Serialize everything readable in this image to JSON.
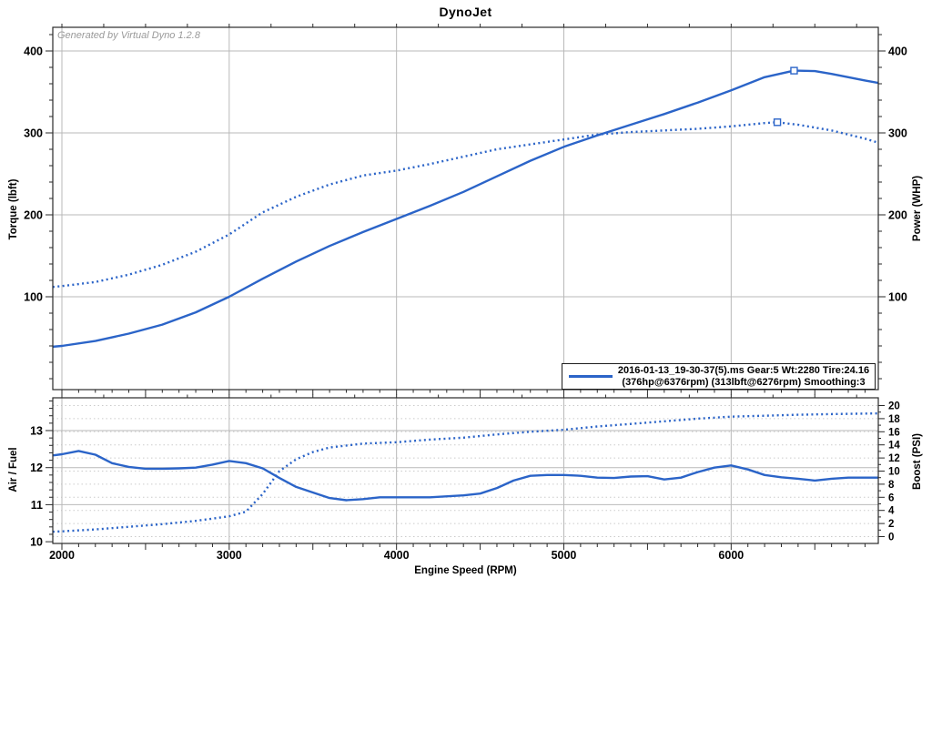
{
  "title": "DynoJet",
  "watermark": "Generated by Virtual Dyno 1.2.8",
  "colors": {
    "accent": "#2b64c8",
    "grid": "#b9b9b9",
    "grid_dotted": "#cbcbcb",
    "frame": "#2a2a2a",
    "tick": "#2a2a2a",
    "watermark_text": "#9a9a9a",
    "text": "#000000"
  },
  "chart_data": [
    {
      "type": "line",
      "title": "DynoJet",
      "ylabel_left": "Torque (lbft)",
      "ylabel_right": "Power (WHP)",
      "x_range": [
        1945,
        6880
      ],
      "y_range": [
        0,
        430
      ],
      "y_ticks": [
        100,
        200,
        300,
        400
      ],
      "y_minor_step": 20,
      "x_ticks": [
        2000,
        3000,
        4000,
        5000,
        6000
      ],
      "x_minor_step": 100,
      "grid": true,
      "legend_position": "bottom-right",
      "legend": {
        "line1": "2016-01-13_19-30-37(5).ms Gear:5 Wt:2280 Tire:24.16",
        "line2": "(376hp@6376rpm) (313lbft@6276rpm) Smoothing:3"
      },
      "series": [
        {
          "name": "Power (WHP)",
          "style": "solid",
          "peak": {
            "rpm": 6376,
            "value": 376
          },
          "points": [
            [
              1945,
              39
            ],
            [
              2000,
              40
            ],
            [
              2200,
              46
            ],
            [
              2400,
              55
            ],
            [
              2600,
              66
            ],
            [
              2800,
              81
            ],
            [
              3000,
              100
            ],
            [
              3200,
              122
            ],
            [
              3400,
              143
            ],
            [
              3600,
              162
            ],
            [
              3800,
              179
            ],
            [
              4000,
              195
            ],
            [
              4200,
              211
            ],
            [
              4400,
              228
            ],
            [
              4600,
              247
            ],
            [
              4800,
              266
            ],
            [
              5000,
              283
            ],
            [
              5200,
              297
            ],
            [
              5400,
              310
            ],
            [
              5600,
              323
            ],
            [
              5800,
              337
            ],
            [
              6000,
              352
            ],
            [
              6200,
              368
            ],
            [
              6376,
              376
            ],
            [
              6500,
              375.5
            ],
            [
              6600,
              372
            ],
            [
              6800,
              364
            ],
            [
              6880,
              361
            ]
          ]
        },
        {
          "name": "Torque (lbft)",
          "style": "dotted",
          "peak": {
            "rpm": 6276,
            "value": 313
          },
          "points": [
            [
              1945,
              112
            ],
            [
              2000,
              113
            ],
            [
              2200,
              118
            ],
            [
              2400,
              127
            ],
            [
              2600,
              139
            ],
            [
              2800,
              155
            ],
            [
              3000,
              176
            ],
            [
              3200,
              203
            ],
            [
              3400,
              222
            ],
            [
              3600,
              237
            ],
            [
              3800,
              248
            ],
            [
              4000,
              254
            ],
            [
              4200,
              262
            ],
            [
              4400,
              271
            ],
            [
              4600,
              280
            ],
            [
              4800,
              286
            ],
            [
              5000,
              292
            ],
            [
              5200,
              298
            ],
            [
              5400,
              301
            ],
            [
              5600,
              303
            ],
            [
              5800,
              305
            ],
            [
              6000,
              308
            ],
            [
              6200,
              312
            ],
            [
              6276,
              313
            ],
            [
              6400,
              310
            ],
            [
              6600,
              303
            ],
            [
              6800,
              293
            ],
            [
              6880,
              288
            ]
          ]
        }
      ]
    },
    {
      "type": "line",
      "xlabel": "Engine Speed (RPM)",
      "ylabel_left": "Air / Fuel",
      "ylabel_right": "Boost (PSI)",
      "x_range": [
        1945,
        6880
      ],
      "left_ticks": [
        10,
        11,
        12,
        13
      ],
      "left_minor_step": 0.2,
      "right_ticks": [
        0,
        2,
        4,
        6,
        8,
        10,
        12,
        14,
        16,
        18,
        20
      ],
      "x_ticks": [
        2000,
        3000,
        4000,
        5000,
        6000
      ],
      "x_minor_step": 100,
      "grid": true,
      "series": [
        {
          "name": "Air / Fuel",
          "axis": "left",
          "style": "solid",
          "points": [
            [
              1945,
              12.33
            ],
            [
              2000,
              12.36
            ],
            [
              2100,
              12.45
            ],
            [
              2200,
              12.35
            ],
            [
              2300,
              12.12
            ],
            [
              2400,
              12.02
            ],
            [
              2500,
              11.97
            ],
            [
              2600,
              11.97
            ],
            [
              2700,
              11.98
            ],
            [
              2800,
              12.0
            ],
            [
              2900,
              12.08
            ],
            [
              3000,
              12.18
            ],
            [
              3100,
              12.12
            ],
            [
              3200,
              11.98
            ],
            [
              3300,
              11.72
            ],
            [
              3400,
              11.48
            ],
            [
              3500,
              11.33
            ],
            [
              3600,
              11.18
            ],
            [
              3700,
              11.12
            ],
            [
              3800,
              11.15
            ],
            [
              3900,
              11.2
            ],
            [
              4000,
              11.2
            ],
            [
              4200,
              11.2
            ],
            [
              4400,
              11.25
            ],
            [
              4500,
              11.3
            ],
            [
              4600,
              11.45
            ],
            [
              4700,
              11.65
            ],
            [
              4800,
              11.78
            ],
            [
              4900,
              11.8
            ],
            [
              5000,
              11.8
            ],
            [
              5100,
              11.78
            ],
            [
              5200,
              11.73
            ],
            [
              5300,
              11.72
            ],
            [
              5400,
              11.76
            ],
            [
              5500,
              11.77
            ],
            [
              5600,
              11.68
            ],
            [
              5700,
              11.73
            ],
            [
              5800,
              11.88
            ],
            [
              5900,
              12.0
            ],
            [
              6000,
              12.06
            ],
            [
              6100,
              11.95
            ],
            [
              6200,
              11.8
            ],
            [
              6300,
              11.74
            ],
            [
              6400,
              11.7
            ],
            [
              6500,
              11.65
            ],
            [
              6600,
              11.7
            ],
            [
              6700,
              11.73
            ],
            [
              6800,
              11.73
            ],
            [
              6880,
              11.73
            ]
          ]
        },
        {
          "name": "Boost (PSI)",
          "axis": "right",
          "style": "dotted",
          "points": [
            [
              1945,
              0.75
            ],
            [
              2000,
              0.8
            ],
            [
              2200,
              1.1
            ],
            [
              2400,
              1.5
            ],
            [
              2600,
              1.9
            ],
            [
              2800,
              2.4
            ],
            [
              3000,
              3.1
            ],
            [
              3100,
              3.8
            ],
            [
              3200,
              6.5
            ],
            [
              3300,
              10.0
            ],
            [
              3400,
              11.8
            ],
            [
              3500,
              12.9
            ],
            [
              3600,
              13.6
            ],
            [
              3800,
              14.2
            ],
            [
              4000,
              14.4
            ],
            [
              4200,
              14.8
            ],
            [
              4400,
              15.1
            ],
            [
              4600,
              15.6
            ],
            [
              4800,
              16.0
            ],
            [
              5000,
              16.3
            ],
            [
              5200,
              16.8
            ],
            [
              5400,
              17.2
            ],
            [
              5600,
              17.6
            ],
            [
              5800,
              18.0
            ],
            [
              6000,
              18.3
            ],
            [
              6200,
              18.45
            ],
            [
              6400,
              18.6
            ],
            [
              6600,
              18.7
            ],
            [
              6880,
              18.8
            ]
          ]
        }
      ]
    }
  ]
}
